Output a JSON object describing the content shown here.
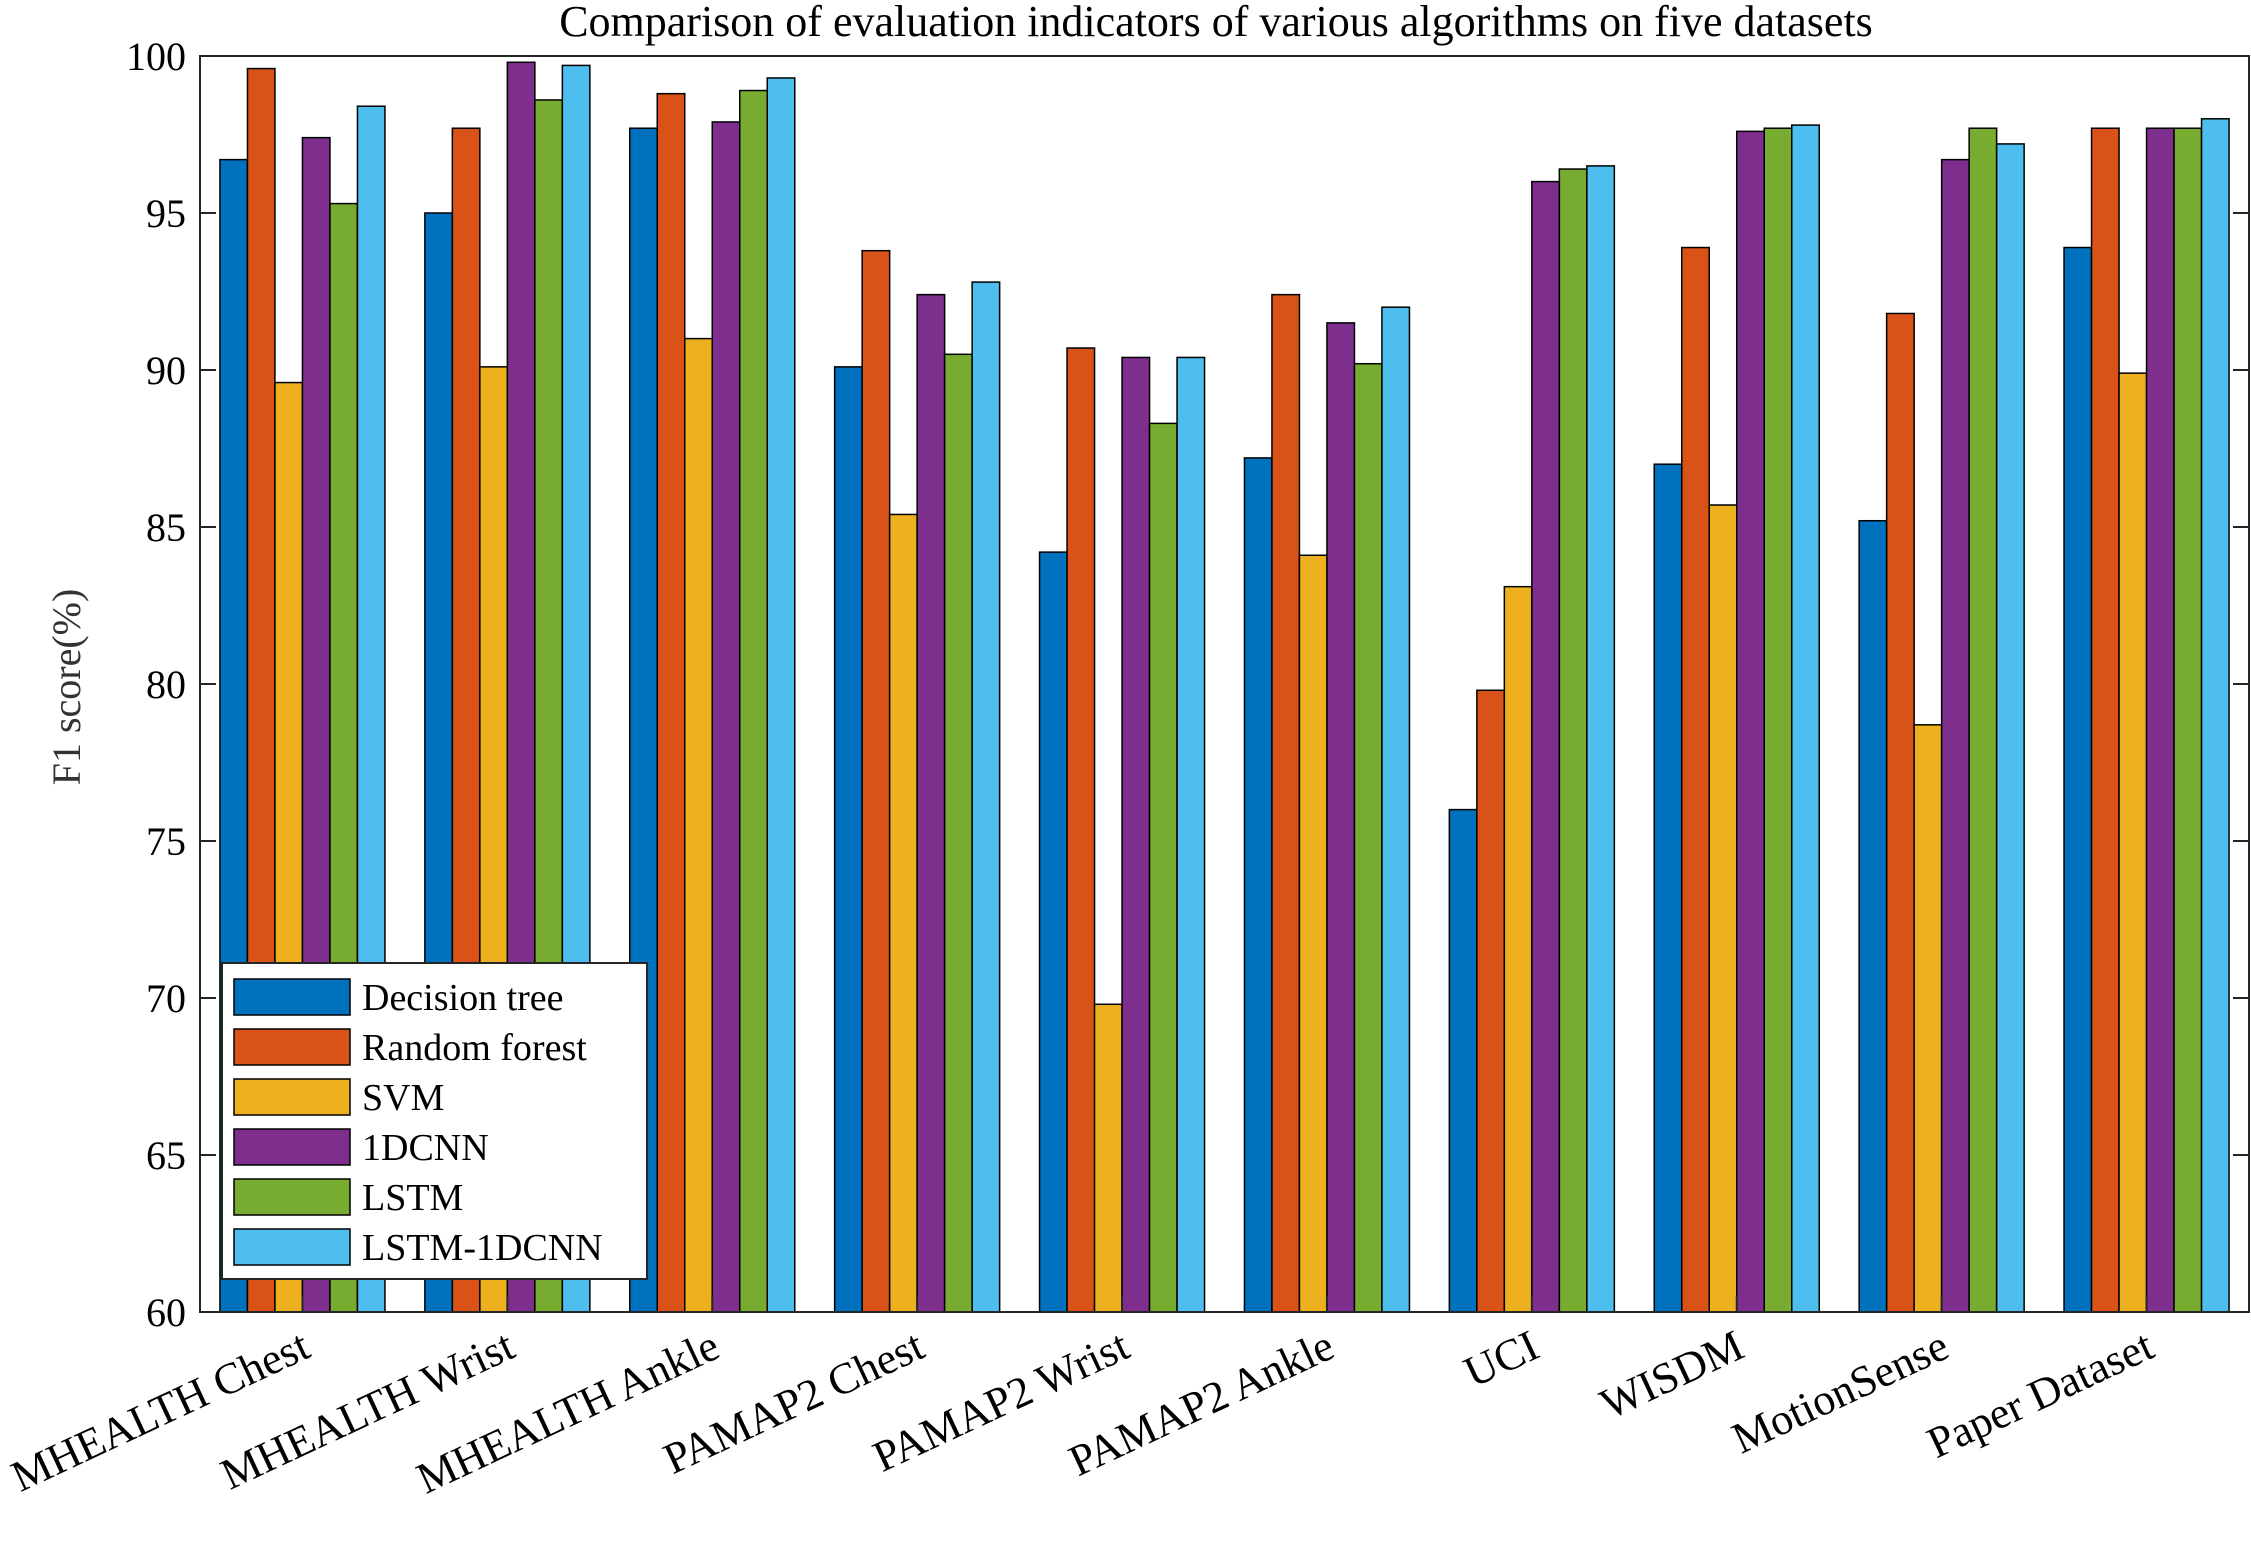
{
  "chart_data": {
    "type": "bar",
    "title": "Comparison of evaluation indicators of various algorithms on five datasets",
    "xlabel": "",
    "ylabel": "F1 score(%)",
    "ylim": [
      60,
      100
    ],
    "yticks": [
      60,
      65,
      70,
      75,
      80,
      85,
      90,
      95,
      100
    ],
    "grid": false,
    "legend_position": "bottom-left",
    "categories": [
      "MHEALTH Chest",
      "MHEALTH Wrist",
      "MHEALTH Ankle",
      "PAMAP2 Chest",
      "PAMAP2 Wrist",
      "PAMAP2 Ankle",
      "UCI",
      "WISDM",
      "MotionSense",
      "Paper Dataset"
    ],
    "series": [
      {
        "name": "Decision tree",
        "color": "#0072BD",
        "values": [
          96.7,
          95.0,
          97.7,
          90.1,
          84.2,
          87.2,
          76.0,
          87.0,
          85.2,
          93.9
        ]
      },
      {
        "name": "Random forest",
        "color": "#D95319",
        "values": [
          99.6,
          97.7,
          98.8,
          93.8,
          90.7,
          92.4,
          79.8,
          93.9,
          91.8,
          97.7
        ]
      },
      {
        "name": "SVM",
        "color": "#EDB120",
        "values": [
          89.6,
          90.1,
          91.0,
          85.4,
          69.8,
          84.1,
          83.1,
          85.7,
          78.7,
          89.9
        ]
      },
      {
        "name": "1DCNN",
        "color": "#7E2F8E",
        "values": [
          97.4,
          99.8,
          97.9,
          92.4,
          90.4,
          91.5,
          96.0,
          97.6,
          96.7,
          97.7
        ]
      },
      {
        "name": "LSTM",
        "color": "#77AC30",
        "values": [
          95.3,
          98.6,
          98.9,
          90.5,
          88.3,
          90.2,
          96.4,
          97.7,
          97.7,
          97.7
        ]
      },
      {
        "name": "LSTM-1DCNN",
        "color": "#4DBEEE",
        "values": [
          98.4,
          99.7,
          99.3,
          92.8,
          90.4,
          92.0,
          96.5,
          97.8,
          97.2,
          98.0
        ]
      }
    ]
  }
}
